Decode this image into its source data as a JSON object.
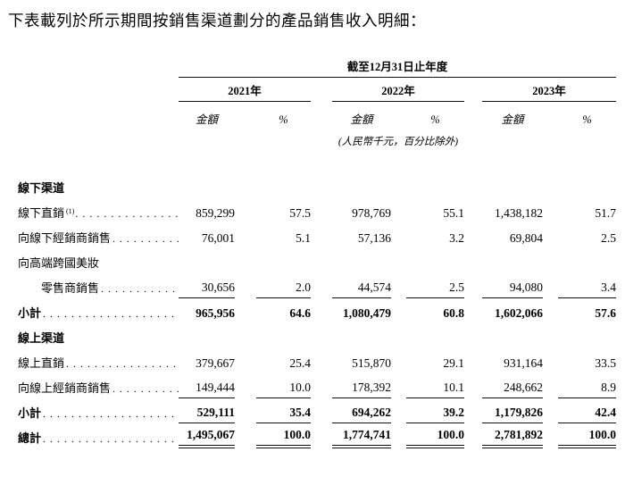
{
  "page": {
    "title": "下表載列於所示期間按銷售渠道劃分的產品銷售收入明細："
  },
  "table": {
    "period_header": "截至12月31日止年度",
    "years": [
      "2021年",
      "2022年",
      "2023年"
    ],
    "amount_header": "金額",
    "percent_header": "%",
    "unit_note": "(人民幣千元，百分比除外)",
    "rows": [
      {
        "type": "section",
        "label": "線下渠道"
      },
      {
        "type": "data",
        "label": "線下直銷",
        "footnote": "(1)",
        "dots": true,
        "values": [
          "859,299",
          "57.5",
          "978,769",
          "55.1",
          "1,438,182",
          "51.7"
        ]
      },
      {
        "type": "data",
        "label": "向線下經銷商銷售",
        "dots": true,
        "values": [
          "76,001",
          "5.1",
          "57,136",
          "3.2",
          "69,804",
          "2.5"
        ]
      },
      {
        "type": "wrap",
        "label": "向高端跨國美妝"
      },
      {
        "type": "data",
        "label": "零售商銷售",
        "indent": true,
        "dots": true,
        "rule": "single",
        "values": [
          "30,656",
          "2.0",
          "44,574",
          "2.5",
          "94,080",
          "3.4"
        ]
      },
      {
        "type": "data",
        "label": "小計",
        "bold": true,
        "dots": true,
        "values": [
          "965,956",
          "64.6",
          "1,080,479",
          "60.8",
          "1,602,066",
          "57.6"
        ]
      },
      {
        "type": "section",
        "label": "線上渠道"
      },
      {
        "type": "data",
        "label": "線上直銷",
        "dots": true,
        "values": [
          "379,667",
          "25.4",
          "515,870",
          "29.1",
          "931,164",
          "33.5"
        ]
      },
      {
        "type": "data",
        "label": "向線上經銷商銷售",
        "dots": true,
        "rule": "single",
        "values": [
          "149,444",
          "10.0",
          "178,392",
          "10.1",
          "248,662",
          "8.9"
        ]
      },
      {
        "type": "data",
        "label": "小計",
        "bold": true,
        "dots": true,
        "rule": "single",
        "values": [
          "529,111",
          "35.4",
          "694,262",
          "39.2",
          "1,179,826",
          "42.4"
        ]
      },
      {
        "type": "data",
        "label": "總計",
        "bold": true,
        "dots": true,
        "rule": "double",
        "values": [
          "1,495,067",
          "100.0",
          "1,774,741",
          "100.0",
          "2,781,892",
          "100.0"
        ]
      }
    ]
  }
}
